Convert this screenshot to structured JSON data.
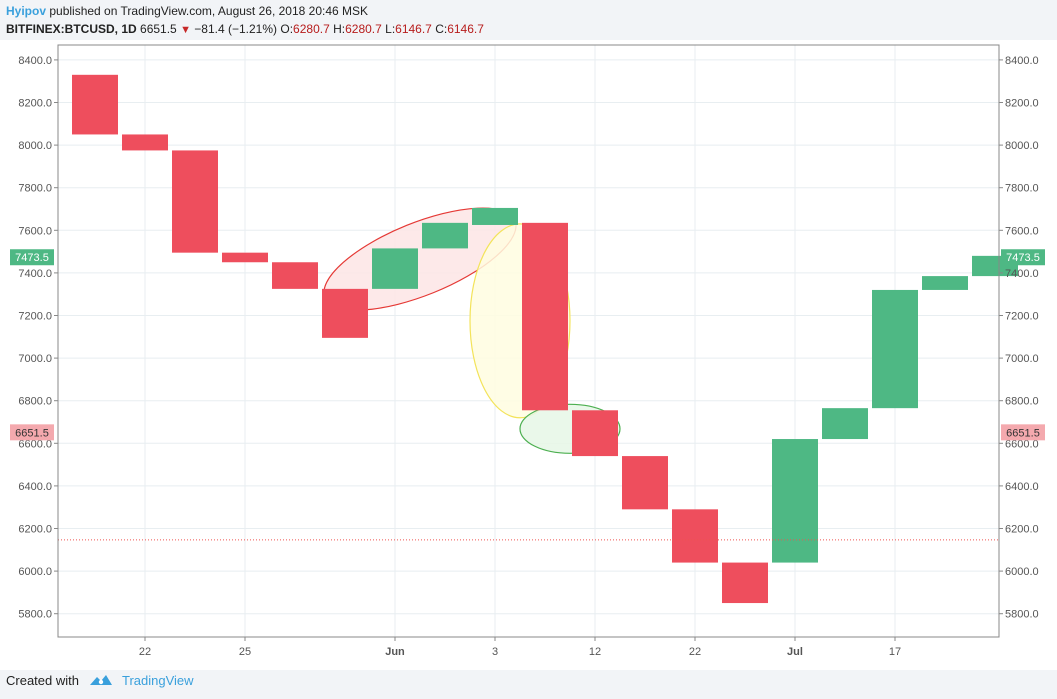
{
  "header": {
    "author": "Hyipov",
    "published_text": " published on TradingView.com, August 26, 2018 20:46 MSK",
    "symbol": "BITFINEX:BTCUSD, 1D",
    "last_price": "6651.5",
    "change": "−81.4 (−1.21%)",
    "o_label": "O:",
    "o_value": "6280.7",
    "h_label": "H:",
    "h_value": "6280.7",
    "l_label": "L:",
    "l_value": "6146.7",
    "c_label": "C:",
    "c_value": "6146.7"
  },
  "footer": {
    "created_with": "Created with",
    "brand": "TradingView"
  },
  "colors": {
    "up": "#4eb884",
    "down": "#ee4e5d",
    "grid": "#e8eef1",
    "axis": "#888888",
    "hline": "#ef5350"
  },
  "chart_data": {
    "type": "bar",
    "subtype": "candlestick-bodies",
    "ylim": [
      5700,
      8500
    ],
    "yticks": [
      "5800.0",
      "6000.0",
      "6200.0",
      "6400.0",
      "6600.0",
      "6800.0",
      "7000.0",
      "7200.0",
      "7400.0",
      "7600.0",
      "7800.0",
      "8000.0",
      "8200.0",
      "8400.0"
    ],
    "xticks": [
      {
        "label": "22",
        "index": 1.5,
        "bold": false
      },
      {
        "label": "25",
        "index": 3.5,
        "bold": false
      },
      {
        "label": "Jun",
        "index": 6.5,
        "bold": true
      },
      {
        "label": "3",
        "index": 8.5,
        "bold": false
      },
      {
        "label": "12",
        "index": 10.5,
        "bold": false
      },
      {
        "label": "22",
        "index": 12.5,
        "bold": false
      },
      {
        "label": "Jul",
        "index": 14.5,
        "bold": true
      },
      {
        "label": "17",
        "index": 16.5,
        "bold": false
      }
    ],
    "candles": [
      {
        "open": 8330,
        "close": 8050
      },
      {
        "open": 8050,
        "close": 7975
      },
      {
        "open": 7975,
        "close": 7495
      },
      {
        "open": 7495,
        "close": 7450
      },
      {
        "open": 7450,
        "close": 7325
      },
      {
        "open": 7325,
        "close": 7095
      },
      {
        "open": 7325,
        "close": 7515
      },
      {
        "open": 7515,
        "close": 7635
      },
      {
        "open": 7625,
        "close": 7705
      },
      {
        "open": 7635,
        "close": 6755
      },
      {
        "open": 6755,
        "close": 6540
      },
      {
        "open": 6540,
        "close": 6290
      },
      {
        "open": 6290,
        "close": 6040
      },
      {
        "open": 6040,
        "close": 5850
      },
      {
        "open": 6040,
        "close": 6620
      },
      {
        "open": 6620,
        "close": 6765
      },
      {
        "open": 6765,
        "close": 7320
      },
      {
        "open": 7320,
        "close": 7385
      },
      {
        "open": 7385,
        "close": 7480
      }
    ],
    "price_labels": [
      {
        "value": 7473.5,
        "text": "7473.5",
        "color": "#4eb884",
        "text_color": "#ffffff"
      },
      {
        "value": 6651.5,
        "text": "6651.5",
        "color": "#f4a9ae",
        "text_color": "#333333"
      }
    ],
    "hline": {
      "value": 6146.7
    },
    "annotations": [
      {
        "shape": "ellipse",
        "cx_index": 7.0,
        "cy": 7465,
        "rx_index": 2.05,
        "ry_price": 170,
        "rotate": -22,
        "stroke": "#e53935",
        "fill": "#fde5e5"
      },
      {
        "shape": "ellipse",
        "cx_index": 9.0,
        "cy": 7175,
        "rx_index": 1.0,
        "ry_price": 455,
        "rotate": 0,
        "stroke": "#f3e35a",
        "fill": "#fffde0"
      },
      {
        "shape": "ellipse",
        "cx_index": 10.0,
        "cy": 6668,
        "rx_index": 1.0,
        "ry_price": 115,
        "rotate": 0,
        "stroke": "#4caf50",
        "fill": "#e6f7e6"
      }
    ]
  }
}
